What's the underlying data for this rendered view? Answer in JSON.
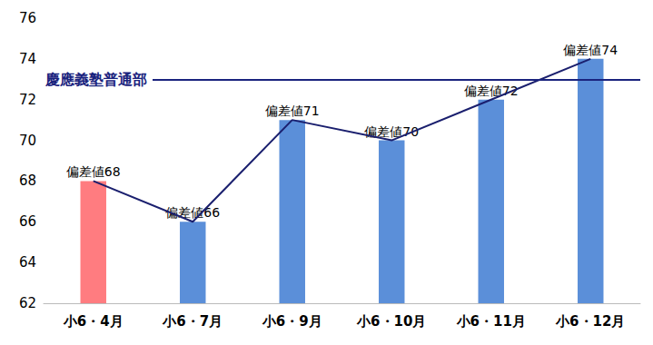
{
  "chart_data": {
    "type": "bar",
    "categories": [
      "小6・4月",
      "小6・7月",
      "小6・9月",
      "小6・10月",
      "小6・11月",
      "小6・12月"
    ],
    "series": [
      {
        "type": "bar",
        "colors": [
          "#ff7c80",
          "#5b8fd9",
          "#5b8fd9",
          "#5b8fd9",
          "#5b8fd9",
          "#5b8fd9"
        ],
        "values": [
          68,
          66,
          71,
          70,
          72,
          74
        ],
        "value_labels": [
          "偏差値68",
          "偏差値66",
          "偏差値71",
          "偏差値70",
          "偏差値72",
          "偏差値74"
        ]
      },
      {
        "type": "line",
        "color": "#1a1f6e",
        "values": [
          68,
          66,
          71,
          70,
          72,
          74
        ]
      }
    ],
    "reference_lines": [
      {
        "value": 73,
        "label": "慶應義塾普通部",
        "color": "#1a237e"
      }
    ],
    "data_labels": true,
    "ylim": [
      62,
      76
    ],
    "yticks": [
      62,
      64,
      66,
      68,
      70,
      72,
      74,
      76
    ],
    "grid": false
  }
}
